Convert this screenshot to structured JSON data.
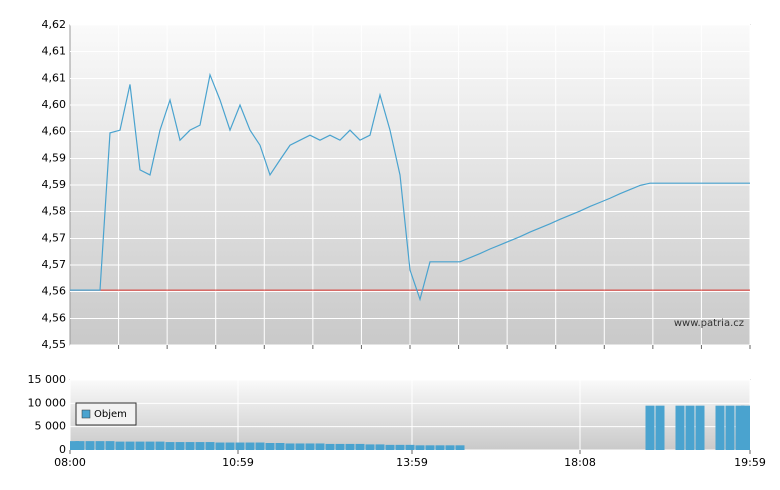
{
  "chart_data": [
    {
      "type": "line",
      "watermark": "www.patria.cz",
      "xlim": [
        0,
        68
      ],
      "ylim": [
        4.55,
        4.62
      ],
      "yticks": [
        {
          "value": 4.55,
          "label": "4,55"
        },
        {
          "value": 4.5558,
          "label": "4,56"
        },
        {
          "value": 4.5617,
          "label": "4,56"
        },
        {
          "value": 4.5675,
          "label": "4,57"
        },
        {
          "value": 4.5733,
          "label": "4,57"
        },
        {
          "value": 4.5792,
          "label": "4,58"
        },
        {
          "value": 4.585,
          "label": "4,59"
        },
        {
          "value": 4.5908,
          "label": "4,59"
        },
        {
          "value": 4.5967,
          "label": "4,60"
        },
        {
          "value": 4.6025,
          "label": "4,60"
        },
        {
          "value": 4.6083,
          "label": "4,61"
        },
        {
          "value": 4.6142,
          "label": "4,61"
        },
        {
          "value": 4.62,
          "label": "4,62"
        }
      ],
      "grid": true,
      "reference_line": {
        "value": 4.562,
        "color": "#d9302a"
      },
      "series": [
        {
          "color": "#4aa3cf",
          "values": [
            4.562,
            4.562,
            4.562,
            4.562,
            4.5964,
            4.597,
            4.607,
            4.5883,
            4.5872,
            4.597,
            4.6036,
            4.5948,
            4.597,
            4.5981,
            4.6091,
            4.6036,
            4.597,
            4.6025,
            4.597,
            4.5937,
            4.5872,
            4.5905,
            4.5937,
            4.5948,
            4.5959,
            4.5948,
            4.5959,
            4.5948,
            4.597,
            4.5948,
            4.5959,
            4.6047,
            4.597,
            4.5872,
            4.5664,
            4.56,
            4.5682,
            4.5682,
            4.5682,
            4.5682,
            4.5691,
            4.57,
            4.571,
            4.5719,
            4.5728,
            4.5737,
            4.5747,
            4.5756,
            4.5765,
            4.5775,
            4.5784,
            4.5793,
            4.5803,
            4.5812,
            4.5821,
            4.5831,
            4.584,
            4.5849,
            4.5854,
            4.5854,
            4.5854,
            4.5854,
            4.5854,
            4.5854,
            4.5854,
            4.5854,
            4.5854,
            4.5854,
            4.5854
          ]
        }
      ]
    },
    {
      "type": "bar",
      "xlim": [
        0,
        68
      ],
      "xticks": [
        {
          "value": 0,
          "label": "08:00"
        },
        {
          "value": 16.8,
          "label": "10:59"
        },
        {
          "value": 34.2,
          "label": "13:59"
        },
        {
          "value": 51,
          "label": "18:08"
        },
        {
          "value": 68,
          "label": "19:59"
        }
      ],
      "ylim": [
        0,
        15000
      ],
      "yticks": [
        0,
        {
          "value": 5000,
          "label": "5 000"
        },
        {
          "value": 10000,
          "label": "10 000"
        },
        {
          "value": 15000,
          "label": "15 000"
        }
      ],
      "grid": true,
      "legend": "upper-left",
      "series": [
        {
          "name": "Objem",
          "color": "#4aa3cf",
          "values": [
            1900,
            1900,
            1900,
            1900,
            1900,
            1800,
            1800,
            1800,
            1800,
            1800,
            1700,
            1700,
            1700,
            1700,
            1700,
            1600,
            1600,
            1600,
            1600,
            1600,
            1500,
            1500,
            1400,
            1400,
            1400,
            1400,
            1300,
            1300,
            1300,
            1300,
            1200,
            1200,
            1100,
            1100,
            1100,
            1000,
            1000,
            1000,
            1000,
            1000,
            0,
            0,
            0,
            0,
            0,
            0,
            0,
            0,
            0,
            0,
            0,
            0,
            0,
            0,
            0,
            0,
            0,
            0,
            9500,
            9500,
            0,
            9500,
            9500,
            9500,
            0,
            9500,
            9500,
            9500,
            9500
          ]
        }
      ]
    }
  ]
}
